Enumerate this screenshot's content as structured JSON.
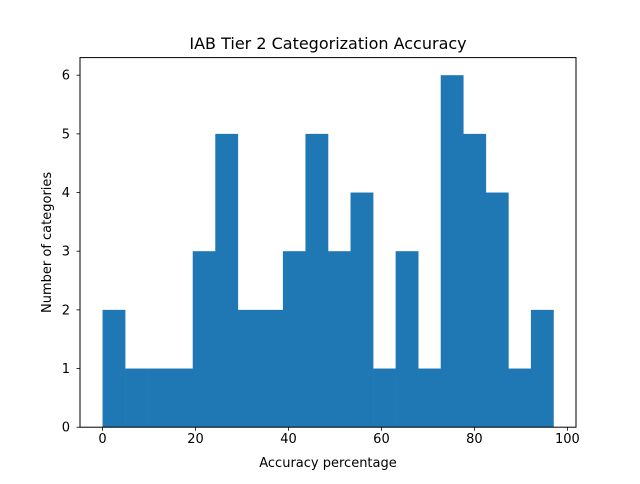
{
  "chart_data": {
    "type": "histogram",
    "title": "IAB Tier 2 Categorization Accuracy",
    "xlabel": "Accuracy percentage",
    "ylabel": "Number of categories",
    "xlim": [
      -4.85,
      101.85
    ],
    "ylim": [
      0,
      6.3
    ],
    "xticks": [
      0,
      20,
      40,
      60,
      80,
      100
    ],
    "yticks": [
      0,
      1,
      2,
      3,
      4,
      5,
      6
    ],
    "bin_start": 0,
    "bin_width": 4.85,
    "counts": [
      2,
      1,
      1,
      1,
      3,
      5,
      2,
      2,
      3,
      5,
      3,
      4,
      1,
      3,
      1,
      6,
      5,
      4,
      1,
      2
    ],
    "bar_color": "#1f77b4",
    "grid": false
  }
}
